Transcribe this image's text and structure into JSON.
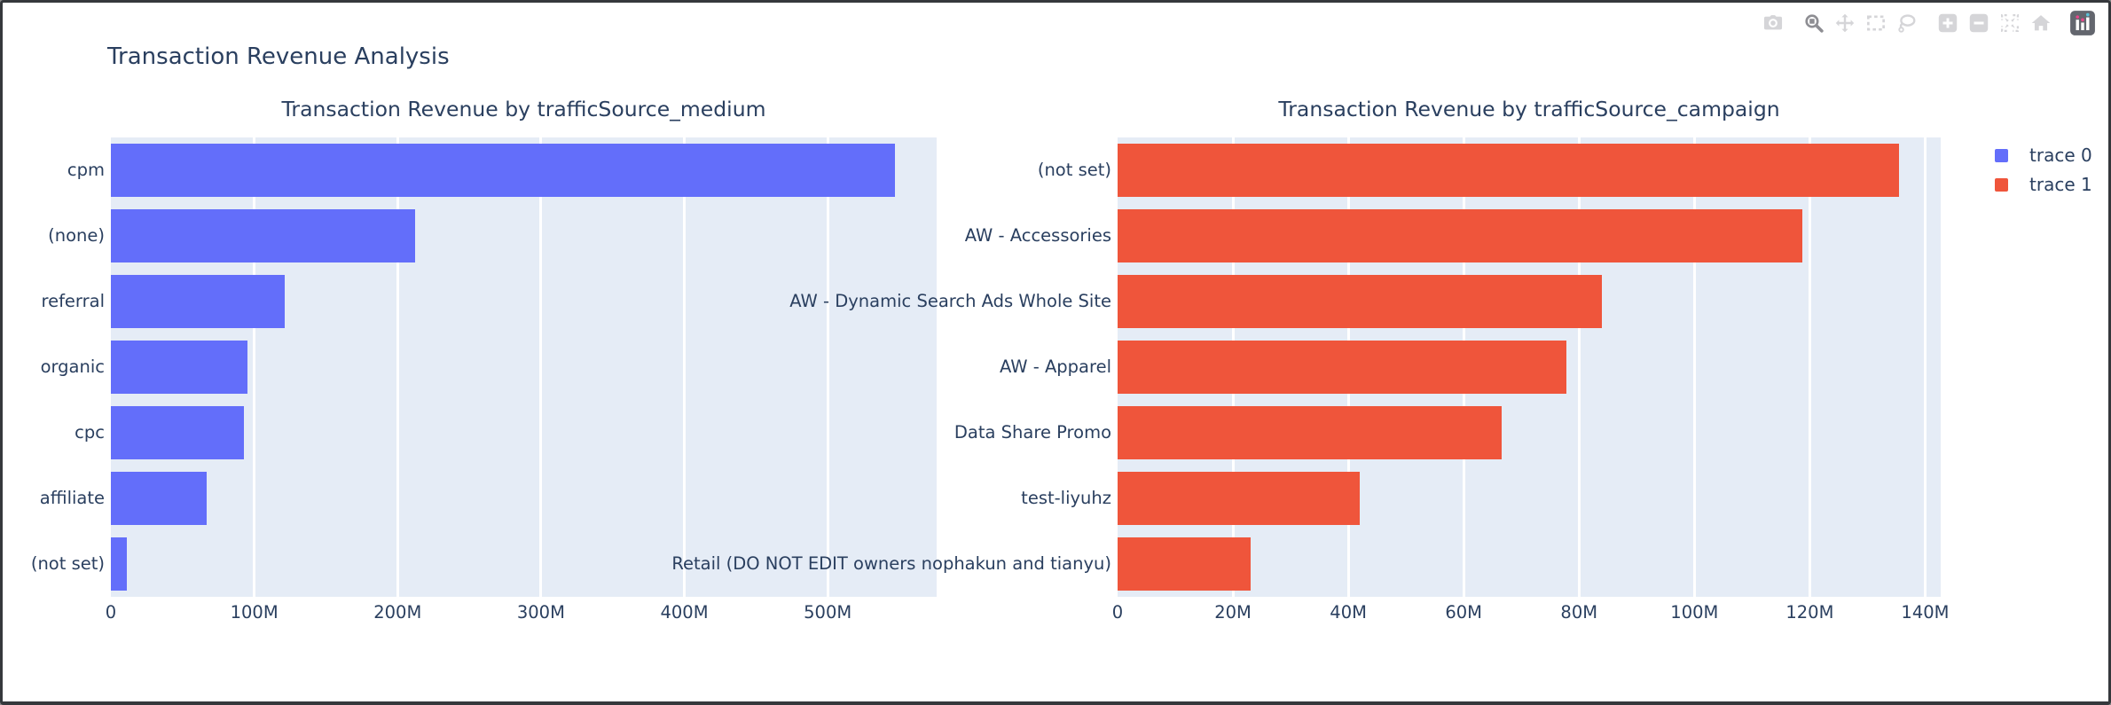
{
  "figure": {
    "title": "Transaction Revenue Analysis"
  },
  "legend": {
    "items": [
      {
        "label": "trace 0",
        "color": "#636EFA"
      },
      {
        "label": "trace 1",
        "color": "#EF553B"
      }
    ]
  },
  "modebar": {
    "buttons": [
      {
        "icon": "camera-icon",
        "name": "download-png",
        "active": false
      },
      {
        "icon": "zoom-icon",
        "name": "zoom",
        "active": true
      },
      {
        "icon": "pan-icon",
        "name": "pan",
        "active": false
      },
      {
        "icon": "box-select-icon",
        "name": "box-select",
        "active": false
      },
      {
        "icon": "lasso-icon",
        "name": "lasso-select",
        "active": false
      },
      {
        "icon": "zoom-in-icon",
        "name": "zoom-in",
        "active": false
      },
      {
        "icon": "zoom-out-icon",
        "name": "zoom-out",
        "active": false
      },
      {
        "icon": "autoscale-icon",
        "name": "autoscale",
        "active": false
      },
      {
        "icon": "home-icon",
        "name": "reset-axes",
        "active": false
      },
      {
        "icon": "plotly-logo-icon",
        "name": "plotly-logo",
        "active": false
      }
    ]
  },
  "chart_data": [
    {
      "type": "bar",
      "orientation": "horizontal",
      "title": "Transaction Revenue by trafficSource_medium",
      "series_name": "trace 0",
      "bar_color": "#636EFA",
      "plot_bg": "#E5ECF6",
      "grid": true,
      "categories": [
        "cpm",
        "(none)",
        "referral",
        "organic",
        "cpc",
        "affiliate",
        "(not set)"
      ],
      "values_millions": [
        547,
        212,
        121,
        95.5,
        93,
        67,
        11.3
      ],
      "xlim_millions": [
        0,
        576
      ],
      "xticks": [
        {
          "value": 0,
          "label": "0"
        },
        {
          "value": 100,
          "label": "100M"
        },
        {
          "value": 200,
          "label": "200M"
        },
        {
          "value": 300,
          "label": "300M"
        },
        {
          "value": 400,
          "label": "400M"
        },
        {
          "value": 500,
          "label": "500M"
        }
      ]
    },
    {
      "type": "bar",
      "orientation": "horizontal",
      "title": "Transaction Revenue by trafficSource_campaign",
      "series_name": "trace 1",
      "bar_color": "#EF553B",
      "plot_bg": "#E5ECF6",
      "grid": true,
      "categories": [
        "(not set)",
        "AW - Accessories",
        "AW - Dynamic Search Ads Whole Site",
        "AW - Apparel",
        "Data Share Promo",
        "test-liyuhz",
        "Retail (DO NOT EDIT owners nophakun and tianyu)"
      ],
      "values_millions": [
        135.5,
        118.7,
        84,
        77.8,
        66.5,
        42,
        23
      ],
      "xlim_millions": [
        0,
        142.7
      ],
      "xticks": [
        {
          "value": 0,
          "label": "0"
        },
        {
          "value": 20,
          "label": "20M"
        },
        {
          "value": 40,
          "label": "40M"
        },
        {
          "value": 60,
          "label": "60M"
        },
        {
          "value": 80,
          "label": "80M"
        },
        {
          "value": 100,
          "label": "100M"
        },
        {
          "value": 120,
          "label": "120M"
        },
        {
          "value": 140,
          "label": "140M"
        }
      ]
    }
  ]
}
